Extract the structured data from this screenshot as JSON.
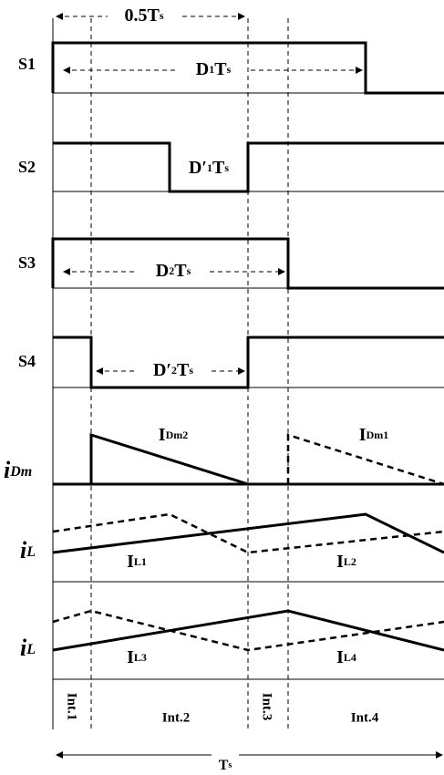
{
  "signals": {
    "s1": "S1",
    "s2": "S2",
    "s3": "S3",
    "s4": "S4",
    "idm": [
      "i",
      "Dm"
    ],
    "il_a": [
      "i",
      "L"
    ],
    "il_b": [
      "i",
      "L"
    ]
  },
  "annotations": {
    "half_period": [
      "0.5T",
      "s"
    ],
    "d1ts": [
      "D",
      "1",
      "T",
      "s"
    ],
    "dp1ts": [
      "D′",
      "1",
      "T",
      "s"
    ],
    "d2ts": [
      "D",
      "2",
      "T",
      "s"
    ],
    "dp2ts": [
      "D′",
      "2",
      "T",
      "s"
    ],
    "period": [
      "T",
      "s"
    ]
  },
  "currents": {
    "idm2": [
      "I",
      "Dm2"
    ],
    "idm1": [
      "I",
      "Dm1"
    ],
    "il1": [
      "I",
      "L1"
    ],
    "il2": [
      "I",
      "L2"
    ],
    "il3": [
      "I",
      "L3"
    ],
    "il4": [
      "I",
      "L4"
    ]
  },
  "intervals": [
    "Int.1",
    "Int.2",
    "Int.3",
    "Int.4"
  ]
}
